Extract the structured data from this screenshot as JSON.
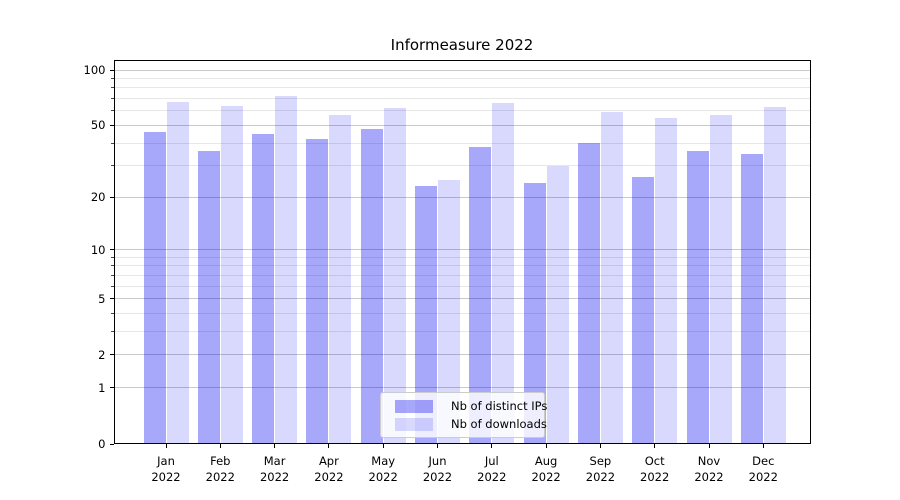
{
  "chart_data": {
    "type": "bar",
    "title": "Informeasure 2022",
    "categories": [
      "Jan 2022",
      "Feb 2022",
      "Mar 2022",
      "Apr 2022",
      "May 2022",
      "Jun 2022",
      "Jul 2022",
      "Aug 2022",
      "Sep 2022",
      "Oct 2022",
      "Nov 2022",
      "Dec 2022"
    ],
    "series": [
      {
        "name": "Nb of distinct IPs",
        "color": "#0000f0",
        "alpha": 0.34,
        "values": [
          46,
          36,
          45,
          42,
          48,
          23,
          38,
          24,
          40,
          26,
          36,
          35
        ]
      },
      {
        "name": "Nb of downloads",
        "color": "#0000f0",
        "alpha": 0.15,
        "values": [
          67,
          64,
          72,
          57,
          62,
          25,
          66,
          30,
          59,
          55,
          57,
          63
        ]
      }
    ],
    "xlabel": "",
    "ylabel": "",
    "yscale": "log1p",
    "yticks": [
      0,
      1,
      2,
      5,
      10,
      20,
      50,
      100
    ],
    "yticks_minor": [
      3,
      4,
      6,
      7,
      8,
      9,
      30,
      40,
      60,
      70,
      80,
      90
    ],
    "ylim": [
      0,
      113
    ],
    "grid": true,
    "legend_position": "lower center"
  },
  "colors": {
    "background": "#ffffff",
    "axis": "#000000",
    "grid_major": "#c9c9c9",
    "grid_minor": "#e7e7e7",
    "bar_dark_on_white": "#aaaaf6",
    "bar_light_on_white": "#d9d9fb"
  }
}
